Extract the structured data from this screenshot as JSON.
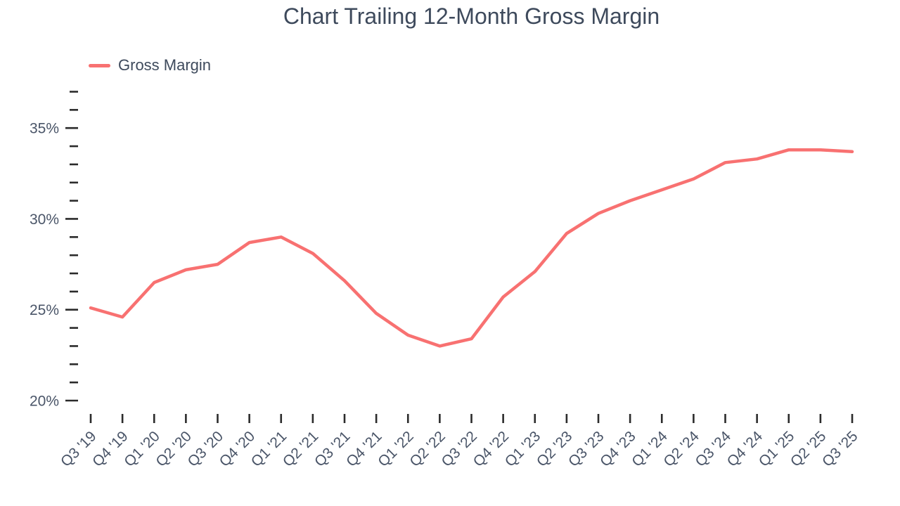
{
  "header": {
    "title": "Chart Trailing 12-Month Gross Margin"
  },
  "legend": {
    "items": [
      {
        "label": "Gross Margin",
        "color": "#f87171"
      }
    ]
  },
  "chart_data": {
    "type": "line",
    "title": "Chart Trailing 12-Month Gross Margin",
    "categories": [
      "Q3 '19",
      "Q4 '19",
      "Q1 '20",
      "Q2 '20",
      "Q3 '20",
      "Q4 '20",
      "Q1 '21",
      "Q2 '21",
      "Q3 '21",
      "Q4 '21",
      "Q1 '22",
      "Q2 '22",
      "Q3 '22",
      "Q4 '22",
      "Q1 '23",
      "Q2 '23",
      "Q3 '23",
      "Q4 '23",
      "Q1 '24",
      "Q2 '24",
      "Q3 '24",
      "Q4 '24",
      "Q1 '25",
      "Q2 '25",
      "Q3 '25"
    ],
    "series": [
      {
        "name": "Gross Margin",
        "color": "#f87171",
        "values": [
          25.1,
          24.6,
          26.5,
          27.2,
          27.5,
          28.7,
          29.0,
          28.1,
          26.6,
          24.8,
          23.6,
          23.0,
          23.4,
          25.7,
          27.1,
          29.2,
          30.3,
          31.0,
          31.6,
          32.2,
          33.1,
          33.3,
          33.8,
          33.8,
          33.7
        ]
      }
    ],
    "y_axis": {
      "unit": "%",
      "min": 20,
      "max": 37,
      "major_ticks": [
        20,
        25,
        30,
        35
      ],
      "major_tick_labels": [
        "20%",
        "25%",
        "30%",
        "35%"
      ],
      "minor_tick_step": 1
    },
    "x_axis": {
      "label_rotation": -45
    },
    "grid": false,
    "axis_lines": false,
    "legend_position": "top-left",
    "colors": {
      "tick": "#2b2b2b",
      "axis_label": "#4a5568",
      "title": "#3e4a5c"
    }
  }
}
